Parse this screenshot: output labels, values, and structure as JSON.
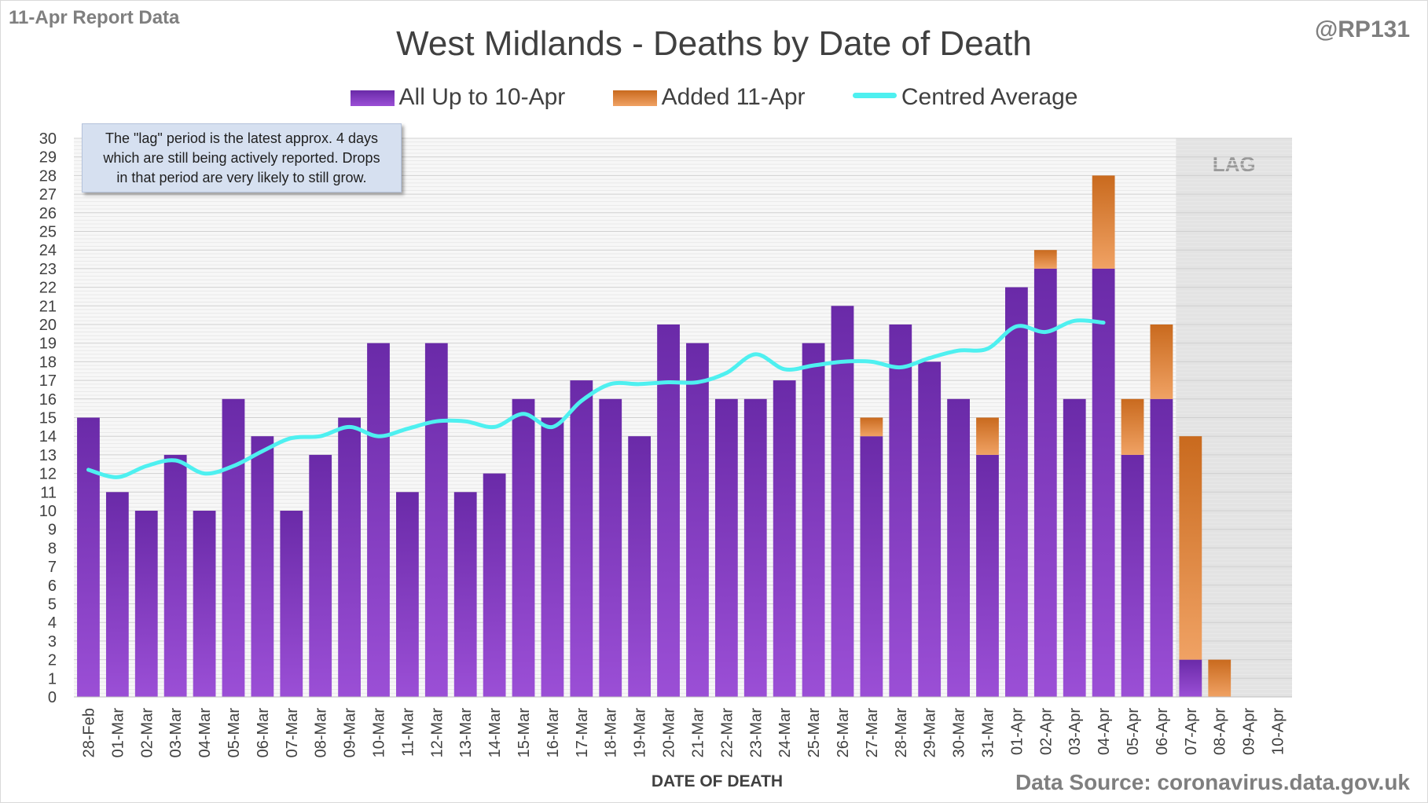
{
  "header": {
    "report_label": "11-Apr Report Data",
    "handle": "@RP131",
    "source": "Data Source: coronavirus.data.gov.uk"
  },
  "annotation": {
    "line1": "The \"lag\" period is the latest approx. 4 days",
    "line2": "which are still being actively reported.  Drops",
    "line3": "in that period are very likely to still grow."
  },
  "colors": {
    "base_top": "#6a2aa8",
    "base_bottom": "#9b4fd6",
    "added_top": "#c96a1e",
    "added_bottom": "#f0a264",
    "average_line": "#4ef0f0",
    "lag_shade": "#e3e3e3"
  },
  "chart_data": {
    "type": "bar",
    "stacked": true,
    "title": "West Midlands - Deaths by Date of Death",
    "xlabel": "DATE OF DEATH",
    "ylabel": "",
    "ylim": [
      0,
      30
    ],
    "yticks": [
      0,
      1,
      2,
      3,
      4,
      5,
      6,
      7,
      8,
      9,
      10,
      11,
      12,
      13,
      14,
      15,
      16,
      17,
      18,
      19,
      20,
      21,
      22,
      23,
      24,
      25,
      26,
      27,
      28,
      29,
      30
    ],
    "grid": true,
    "legend_position": "top",
    "lag_label": "LAG",
    "lag_categories": [
      "07-Apr",
      "08-Apr",
      "09-Apr",
      "10-Apr"
    ],
    "categories": [
      "28-Feb",
      "01-Mar",
      "02-Mar",
      "03-Mar",
      "04-Mar",
      "05-Mar",
      "06-Mar",
      "07-Mar",
      "08-Mar",
      "09-Mar",
      "10-Mar",
      "11-Mar",
      "12-Mar",
      "13-Mar",
      "14-Mar",
      "15-Mar",
      "16-Mar",
      "17-Mar",
      "18-Mar",
      "19-Mar",
      "20-Mar",
      "21-Mar",
      "22-Mar",
      "23-Mar",
      "24-Mar",
      "25-Mar",
      "26-Mar",
      "27-Mar",
      "28-Mar",
      "29-Mar",
      "30-Mar",
      "31-Mar",
      "01-Apr",
      "02-Apr",
      "03-Apr",
      "04-Apr",
      "05-Apr",
      "06-Apr",
      "07-Apr",
      "08-Apr",
      "09-Apr",
      "10-Apr"
    ],
    "series": [
      {
        "name": "All Up to 10-Apr",
        "kind": "bar",
        "values": [
          15,
          11,
          10,
          13,
          10,
          16,
          14,
          10,
          13,
          15,
          19,
          11,
          19,
          11,
          12,
          16,
          15,
          17,
          16,
          14,
          20,
          19,
          16,
          16,
          17,
          19,
          21,
          14,
          20,
          18,
          16,
          13,
          22,
          23,
          16,
          23,
          13,
          16,
          2,
          0,
          0,
          0
        ]
      },
      {
        "name": "Added 11-Apr",
        "kind": "bar",
        "values": [
          0,
          0,
          0,
          0,
          0,
          0,
          0,
          0,
          0,
          0,
          0,
          0,
          0,
          0,
          0,
          0,
          0,
          0,
          0,
          0,
          0,
          0,
          0,
          0,
          0,
          0,
          0,
          1,
          0,
          0,
          0,
          2,
          0,
          1,
          0,
          5,
          3,
          4,
          12,
          2,
          0,
          0
        ]
      },
      {
        "name": "Centred Average",
        "kind": "line",
        "values": [
          12.2,
          11.8,
          12.4,
          12.7,
          12.0,
          12.4,
          13.2,
          13.9,
          14.0,
          14.5,
          14.0,
          14.4,
          14.8,
          14.8,
          14.5,
          15.2,
          14.5,
          15.9,
          16.8,
          16.8,
          16.9,
          16.9,
          17.4,
          18.4,
          17.6,
          17.8,
          18.0,
          18.0,
          17.7,
          18.2,
          18.6,
          18.7,
          19.9,
          19.6,
          20.2,
          20.1,
          null,
          null,
          null,
          null,
          null,
          null
        ]
      }
    ]
  }
}
